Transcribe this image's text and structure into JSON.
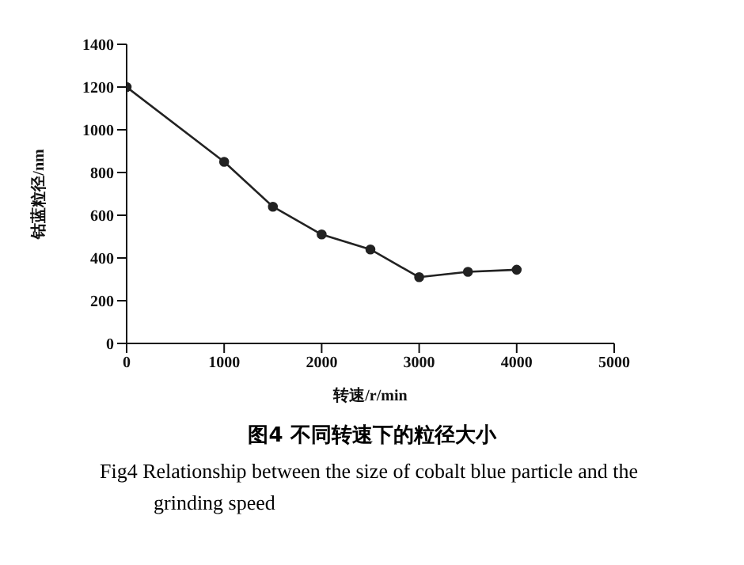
{
  "chart_data": {
    "type": "line",
    "title": "图4 不同转速下的粒径大小",
    "subtitle": "Fig4 Relationship between the size of cobalt blue particle and the grinding speed",
    "xlabel": "转速/r/min",
    "ylabel": "钴蓝粒径/nm",
    "x": [
      0,
      1000,
      1500,
      2000,
      2500,
      3000,
      3500,
      4000
    ],
    "series": [
      {
        "color": "#222222",
        "values": [
          1200,
          850,
          640,
          510,
          440,
          310,
          335,
          345
        ]
      }
    ],
    "xlim": [
      0,
      5000
    ],
    "xticks": [
      0,
      1000,
      2000,
      3000,
      4000,
      5000
    ],
    "ylim": [
      0,
      1400
    ],
    "yticks": [
      0,
      200,
      400,
      600,
      800,
      1000,
      1200,
      1400
    ],
    "grid": false,
    "legend": false,
    "marker": "circle",
    "line_style": "solid"
  }
}
